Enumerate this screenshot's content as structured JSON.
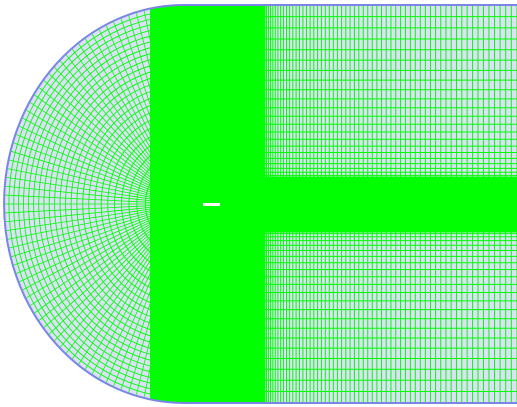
{
  "mesh": {
    "colors": {
      "background": "#ffffff",
      "boundary": "#7a86e6",
      "fill": "#dde0f8",
      "grid": "#00ff00",
      "dense": "#00ff00",
      "marker": "#ffffff"
    }
  }
}
